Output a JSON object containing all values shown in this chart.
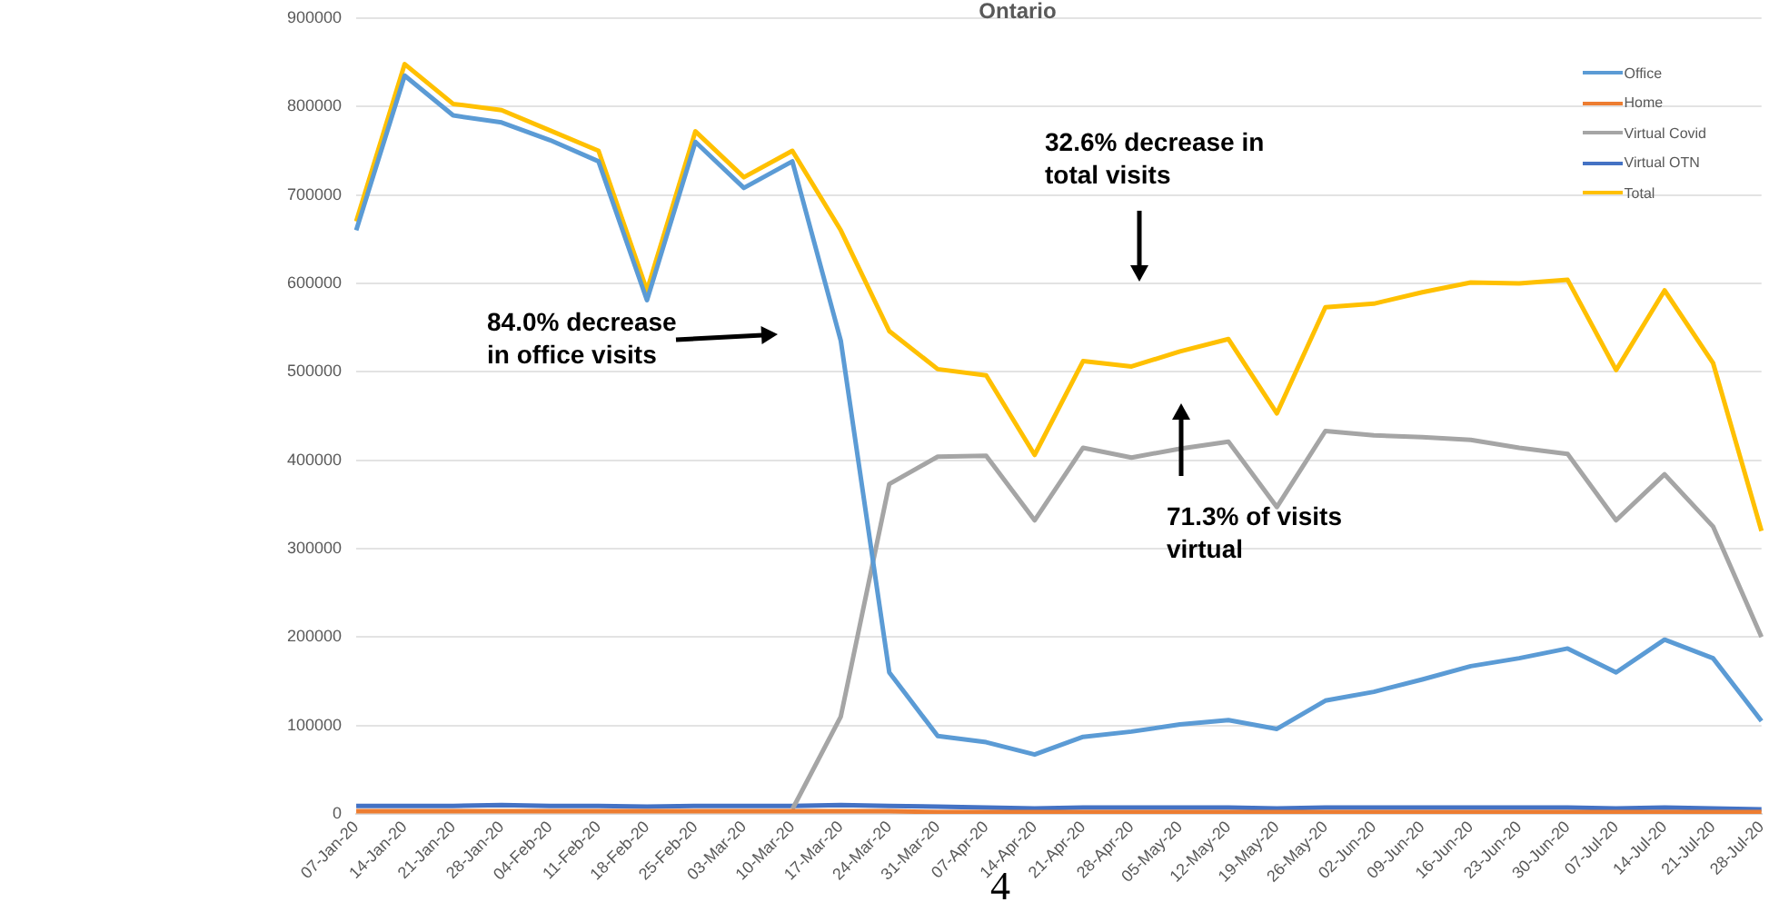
{
  "chart_data": {
    "type": "line",
    "title": "Ontario",
    "categories": [
      "07-Jan-20",
      "14-Jan-20",
      "21-Jan-20",
      "28-Jan-20",
      "04-Feb-20",
      "11-Feb-20",
      "18-Feb-20",
      "25-Feb-20",
      "03-Mar-20",
      "10-Mar-20",
      "17-Mar-20",
      "24-Mar-20",
      "31-Mar-20",
      "07-Apr-20",
      "14-Apr-20",
      "21-Apr-20",
      "28-Apr-20",
      "05-May-20",
      "12-May-20",
      "19-May-20",
      "26-May-20",
      "02-Jun-20",
      "09-Jun-20",
      "16-Jun-20",
      "23-Jun-20",
      "30-Jun-20",
      "07-Jul-20",
      "14-Jul-20",
      "21-Jul-20",
      "28-Jul-20"
    ],
    "series": [
      {
        "name": "Office",
        "color": "#5b9bd5",
        "values": [
          660000,
          835000,
          790000,
          782000,
          762000,
          738000,
          581000,
          760000,
          708000,
          738000,
          535000,
          160000,
          88000,
          81000,
          67000,
          87000,
          93000,
          101000,
          106000,
          96000,
          128000,
          138000,
          152000,
          167000,
          176000,
          187000,
          160000,
          197000,
          176000,
          105000
        ]
      },
      {
        "name": "Home",
        "color": "#ed7d31",
        "values": [
          3000,
          3000,
          3000,
          3000,
          3000,
          3000,
          3000,
          3000,
          3000,
          3000,
          3000,
          3000,
          2000,
          2000,
          2000,
          2000,
          2000,
          2000,
          2000,
          2000,
          2000,
          2000,
          2000,
          2000,
          2000,
          2000,
          2000,
          2000,
          2000,
          2000
        ]
      },
      {
        "name": "Virtual Covid",
        "color": "#a5a5a5",
        "values": [
          null,
          null,
          null,
          null,
          null,
          null,
          null,
          null,
          null,
          5000,
          110000,
          373000,
          404000,
          405000,
          332000,
          414000,
          403000,
          413000,
          421000,
          347000,
          433000,
          428000,
          426000,
          423000,
          414000,
          407000,
          332000,
          384000,
          325000,
          200000
        ]
      },
      {
        "name": "Virtual OTN",
        "color": "#4472c4",
        "values": [
          9000,
          9000,
          9000,
          10000,
          9000,
          9000,
          8000,
          9000,
          9000,
          9000,
          10000,
          9000,
          8000,
          7000,
          6000,
          7000,
          7000,
          7000,
          7000,
          6000,
          7000,
          7000,
          7000,
          7000,
          7000,
          7000,
          6000,
          7000,
          6000,
          5000
        ]
      },
      {
        "name": "Total",
        "color": "#ffc000",
        "values": [
          670000,
          848000,
          803000,
          796000,
          773000,
          750000,
          592000,
          772000,
          720000,
          750000,
          660000,
          546000,
          503000,
          496000,
          406000,
          512000,
          506000,
          523000,
          537000,
          453000,
          573000,
          577000,
          590000,
          601000,
          600000,
          604000,
          502000,
          592000,
          510000,
          320000
        ]
      }
    ],
    "ylim": [
      0,
      900000
    ],
    "yticks": [
      0,
      100000,
      200000,
      300000,
      400000,
      500000,
      600000,
      700000,
      800000,
      900000
    ],
    "grid": "y",
    "legend": "top right",
    "marker": "none",
    "line_style": "solid",
    "annotations": [
      "84.0% decrease in office visits",
      "32.6% decrease in total visits",
      "71.3% of visits virtual",
      "4"
    ]
  }
}
